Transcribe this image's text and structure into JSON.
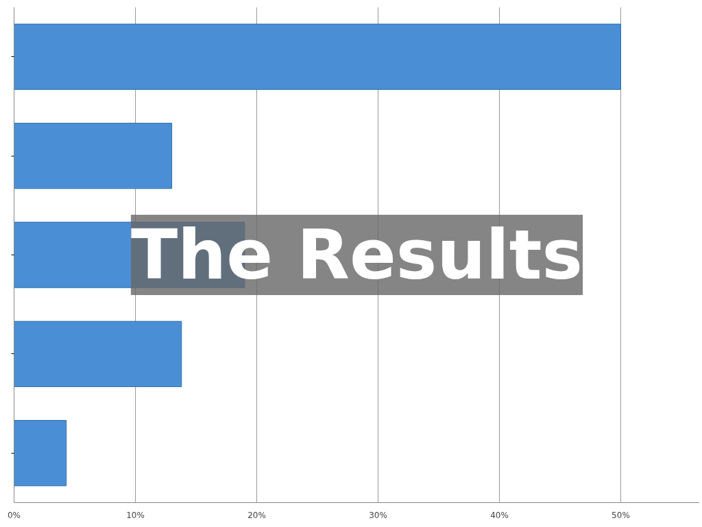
{
  "chart_data": {
    "type": "bar",
    "orientation": "horizontal",
    "title": "The Results",
    "categories": [
      null,
      null,
      null,
      null,
      null
    ],
    "values": [
      50,
      13,
      19,
      13.8,
      4.3
    ],
    "color": "#4a8fd6",
    "xlim": [
      0,
      56.5
    ],
    "xticks": [
      {
        "value": 0,
        "label": "0%"
      },
      {
        "value": 10,
        "label": "10%"
      },
      {
        "value": 20,
        "label": "20%"
      },
      {
        "value": 30,
        "label": "30%"
      },
      {
        "value": 40,
        "label": "40%"
      },
      {
        "value": 50,
        "label": "50%"
      }
    ],
    "grid": "x"
  }
}
